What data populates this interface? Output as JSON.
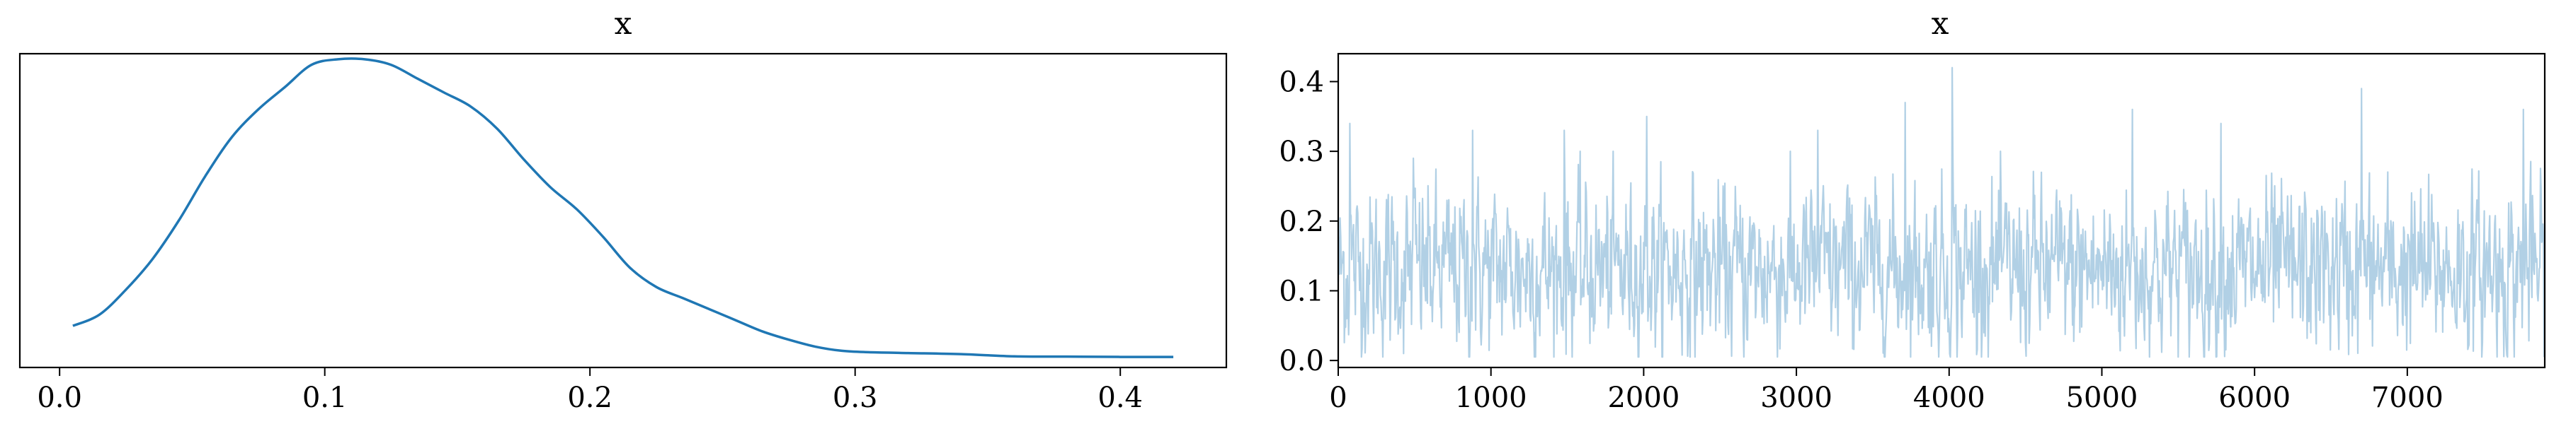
{
  "figure": {
    "background": "#ffffff",
    "line_color": "#1f77b4",
    "trace_color": "#1f77b4",
    "trace_alpha": 0.35
  },
  "chart_data": [
    {
      "type": "line",
      "title": "x",
      "xlabel": "",
      "ylabel": "",
      "xlim": [
        -0.015,
        0.44
      ],
      "ylim": [
        -0.3,
        11.0
      ],
      "xticks": [
        0.0,
        0.1,
        0.2,
        0.3,
        0.4
      ],
      "xtick_labels": [
        "0.0",
        "0.1",
        "0.2",
        "0.3",
        "0.4"
      ],
      "yticks": [],
      "grid": false,
      "x": [
        0.005,
        0.015,
        0.025,
        0.035,
        0.045,
        0.055,
        0.065,
        0.075,
        0.085,
        0.095,
        0.105,
        0.115,
        0.125,
        0.135,
        0.145,
        0.155,
        0.165,
        0.175,
        0.185,
        0.195,
        0.205,
        0.215,
        0.225,
        0.235,
        0.245,
        0.255,
        0.265,
        0.275,
        0.285,
        0.295,
        0.305,
        0.32,
        0.34,
        0.36,
        0.38,
        0.4,
        0.42
      ],
      "y": [
        1.2,
        1.6,
        2.5,
        3.6,
        5.0,
        6.6,
        8.0,
        9.0,
        9.8,
        10.6,
        10.8,
        10.8,
        10.6,
        10.1,
        9.6,
        9.1,
        8.3,
        7.2,
        6.2,
        5.4,
        4.4,
        3.3,
        2.6,
        2.2,
        1.8,
        1.4,
        1.0,
        0.7,
        0.45,
        0.3,
        0.25,
        0.22,
        0.18,
        0.1,
        0.09,
        0.08,
        0.08
      ]
    },
    {
      "type": "line",
      "title": "x",
      "xlabel": "",
      "ylabel": "",
      "xlim": [
        0,
        7900
      ],
      "ylim": [
        -0.01,
        0.44
      ],
      "xticks": [
        0,
        1000,
        2000,
        3000,
        4000,
        5000,
        6000,
        7000
      ],
      "xtick_labels": [
        "0",
        "1000",
        "2000",
        "3000",
        "4000",
        "5000",
        "6000",
        "7000"
      ],
      "yticks": [
        0.0,
        0.1,
        0.2,
        0.3,
        0.4
      ],
      "ytick_labels": [
        "0.0",
        "0.1",
        "0.2",
        "0.3",
        "0.4"
      ],
      "grid": false,
      "n_samples": 8000,
      "mean": 0.13,
      "peaks": [
        [
          75,
          0.34
        ],
        [
          490,
          0.29
        ],
        [
          880,
          0.33
        ],
        [
          1480,
          0.33
        ],
        [
          2020,
          0.35
        ],
        [
          3140,
          0.33
        ],
        [
          3710,
          0.37
        ],
        [
          4020,
          0.42
        ],
        [
          5200,
          0.36
        ],
        [
          5780,
          0.34
        ],
        [
          6700,
          0.39
        ],
        [
          7760,
          0.36
        ]
      ]
    }
  ]
}
